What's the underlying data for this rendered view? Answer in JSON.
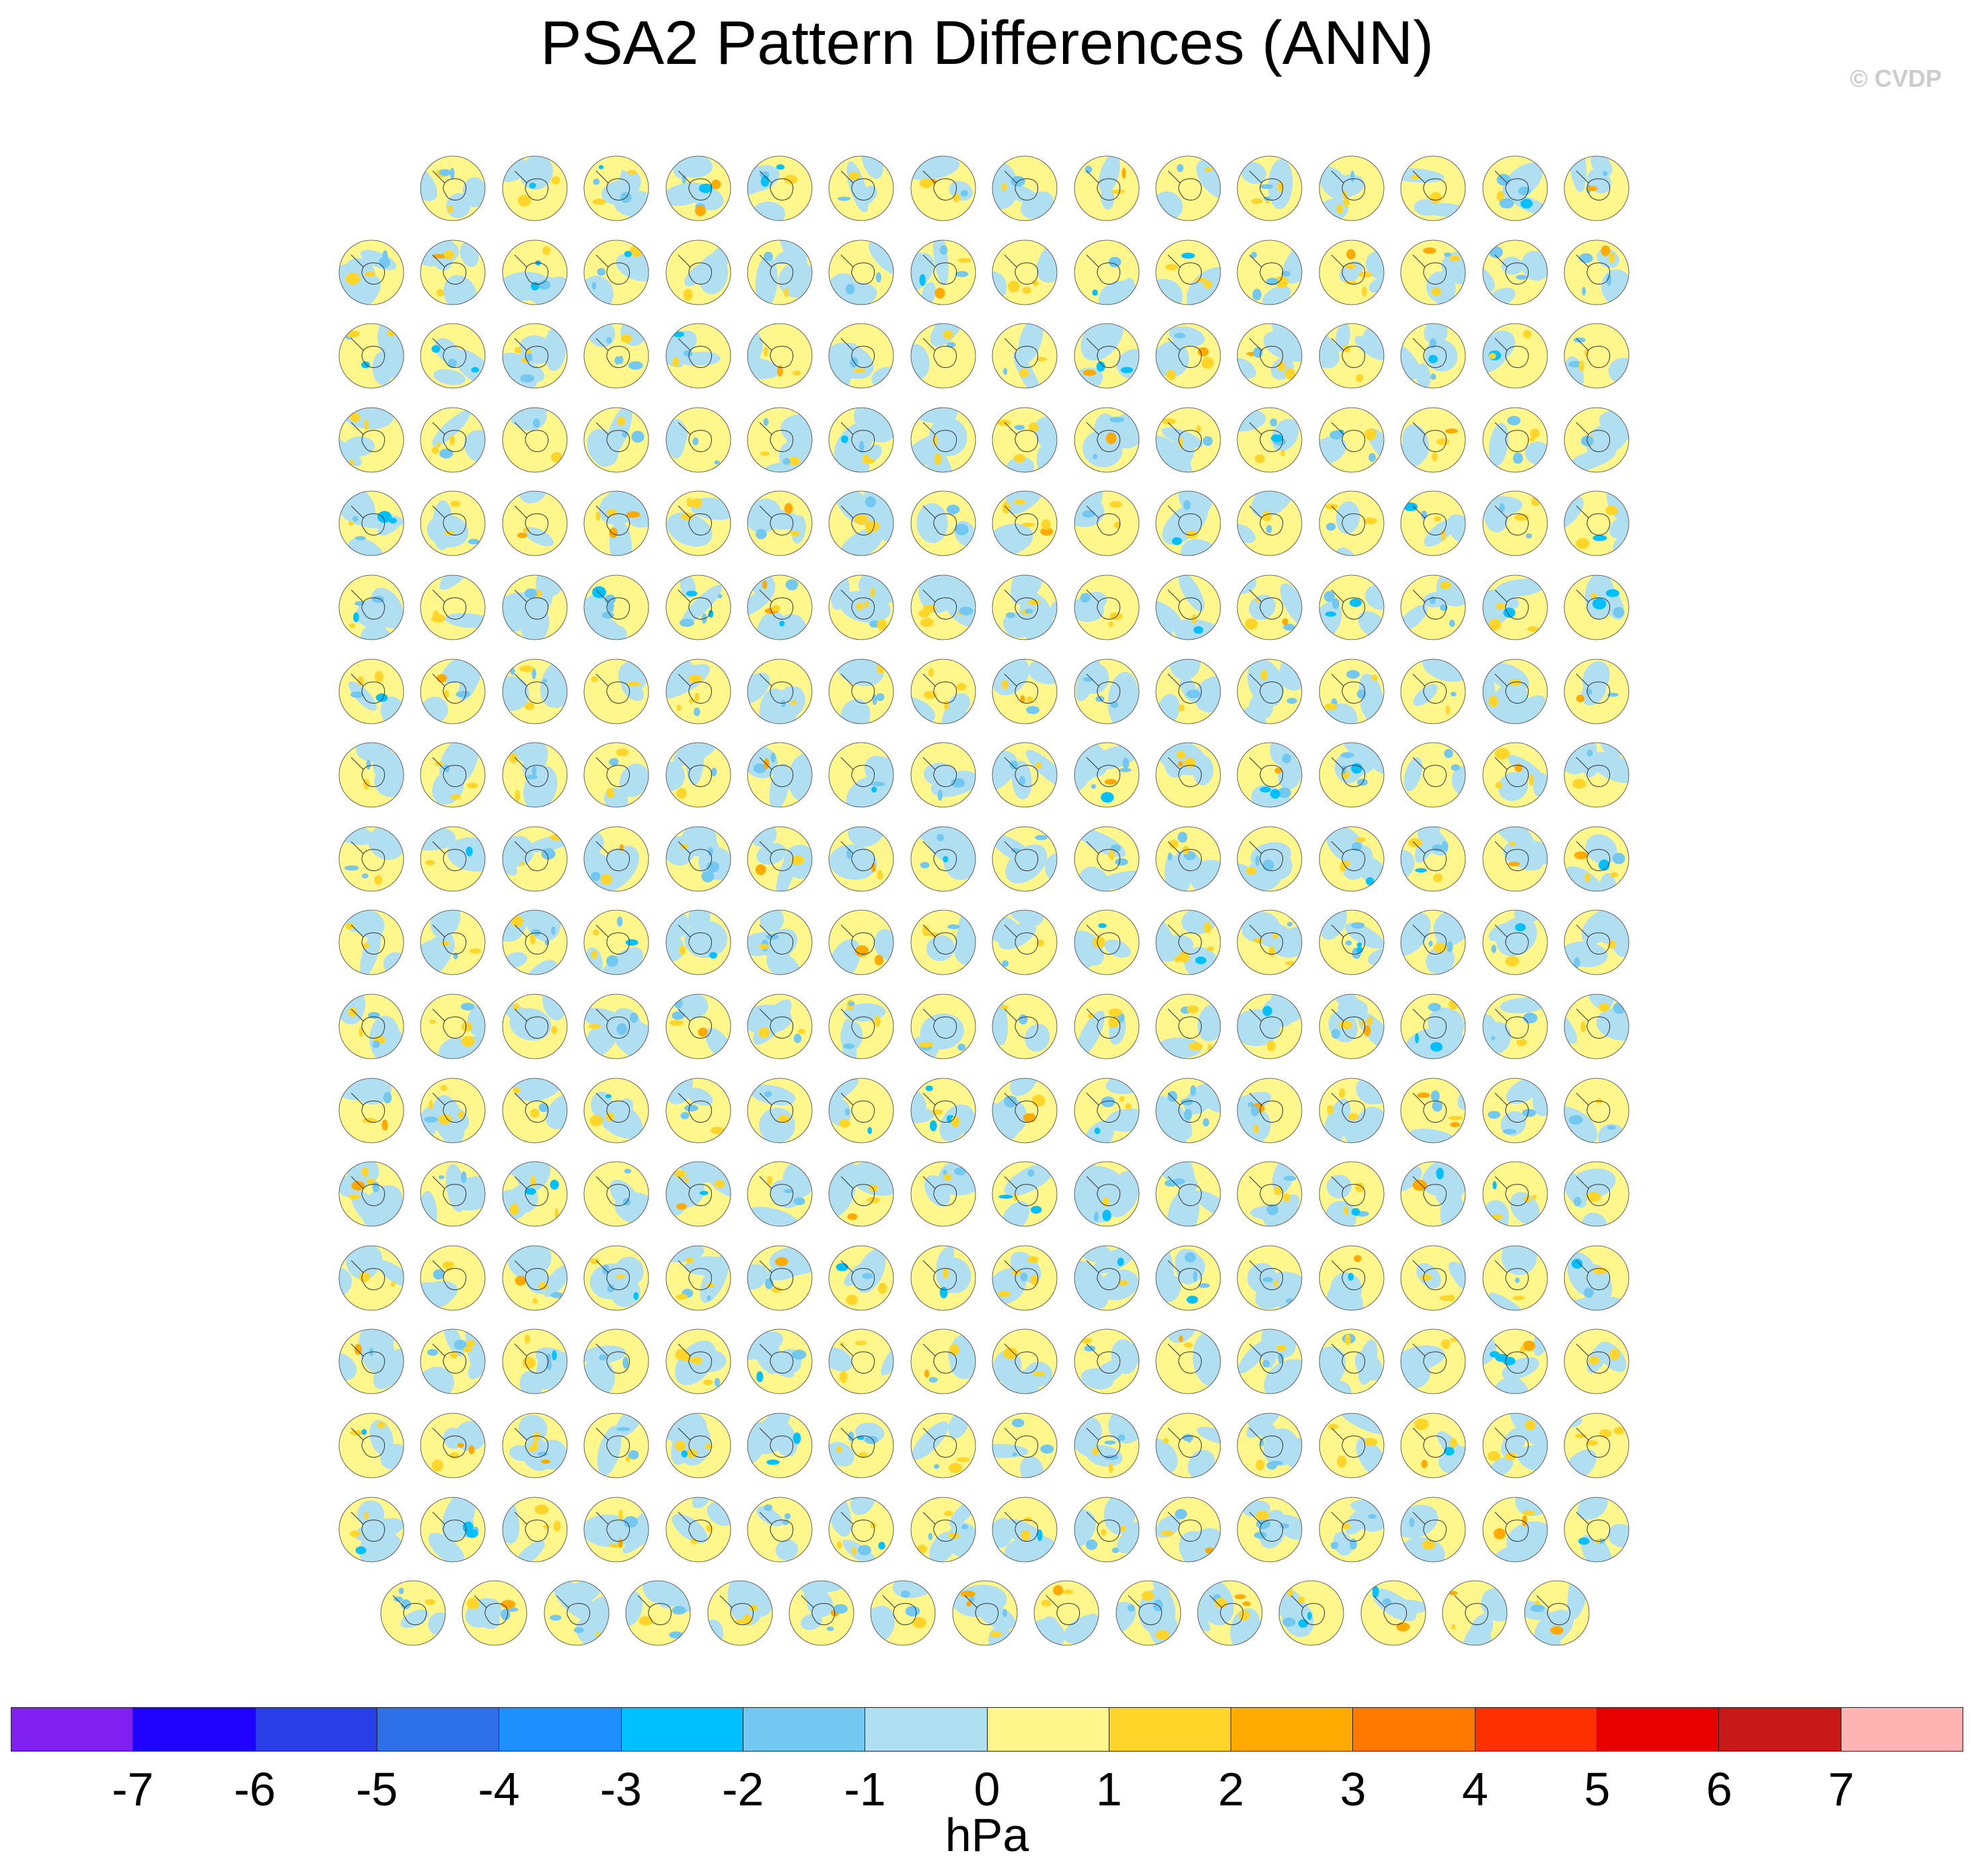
{
  "title": "PSA2 Pattern Differences (ANN)",
  "watermark": "© CVDP",
  "colorbar": {
    "units": "hPa",
    "tick_labels": [
      "-7",
      "-6",
      "-5",
      "-4",
      "-3",
      "-2",
      "-1",
      "0",
      "1",
      "2",
      "3",
      "4",
      "5",
      "6",
      "7"
    ],
    "colors": [
      "#8020f0",
      "#2000ff",
      "#2a3ee8",
      "#2e70e8",
      "#1e90ff",
      "#00c0ff",
      "#72c8f0",
      "#b0dff2",
      "#fff68c",
      "#ffd52a",
      "#ffaa00",
      "#ff7800",
      "#ff3000",
      "#e60000",
      "#c81818",
      "#ffb4b4"
    ]
  },
  "chart_data": {
    "type": "heatmap",
    "description_units": "hPa",
    "layout_rows": [
      15,
      16,
      16,
      16,
      16,
      16,
      16,
      16,
      16,
      16,
      16,
      16,
      16,
      16,
      16,
      16,
      16,
      15
    ],
    "title": "PSA2 Pattern Differences (ANN)",
    "colorbar_range": [
      -7,
      7
    ],
    "colorbar_interval": 1
  }
}
